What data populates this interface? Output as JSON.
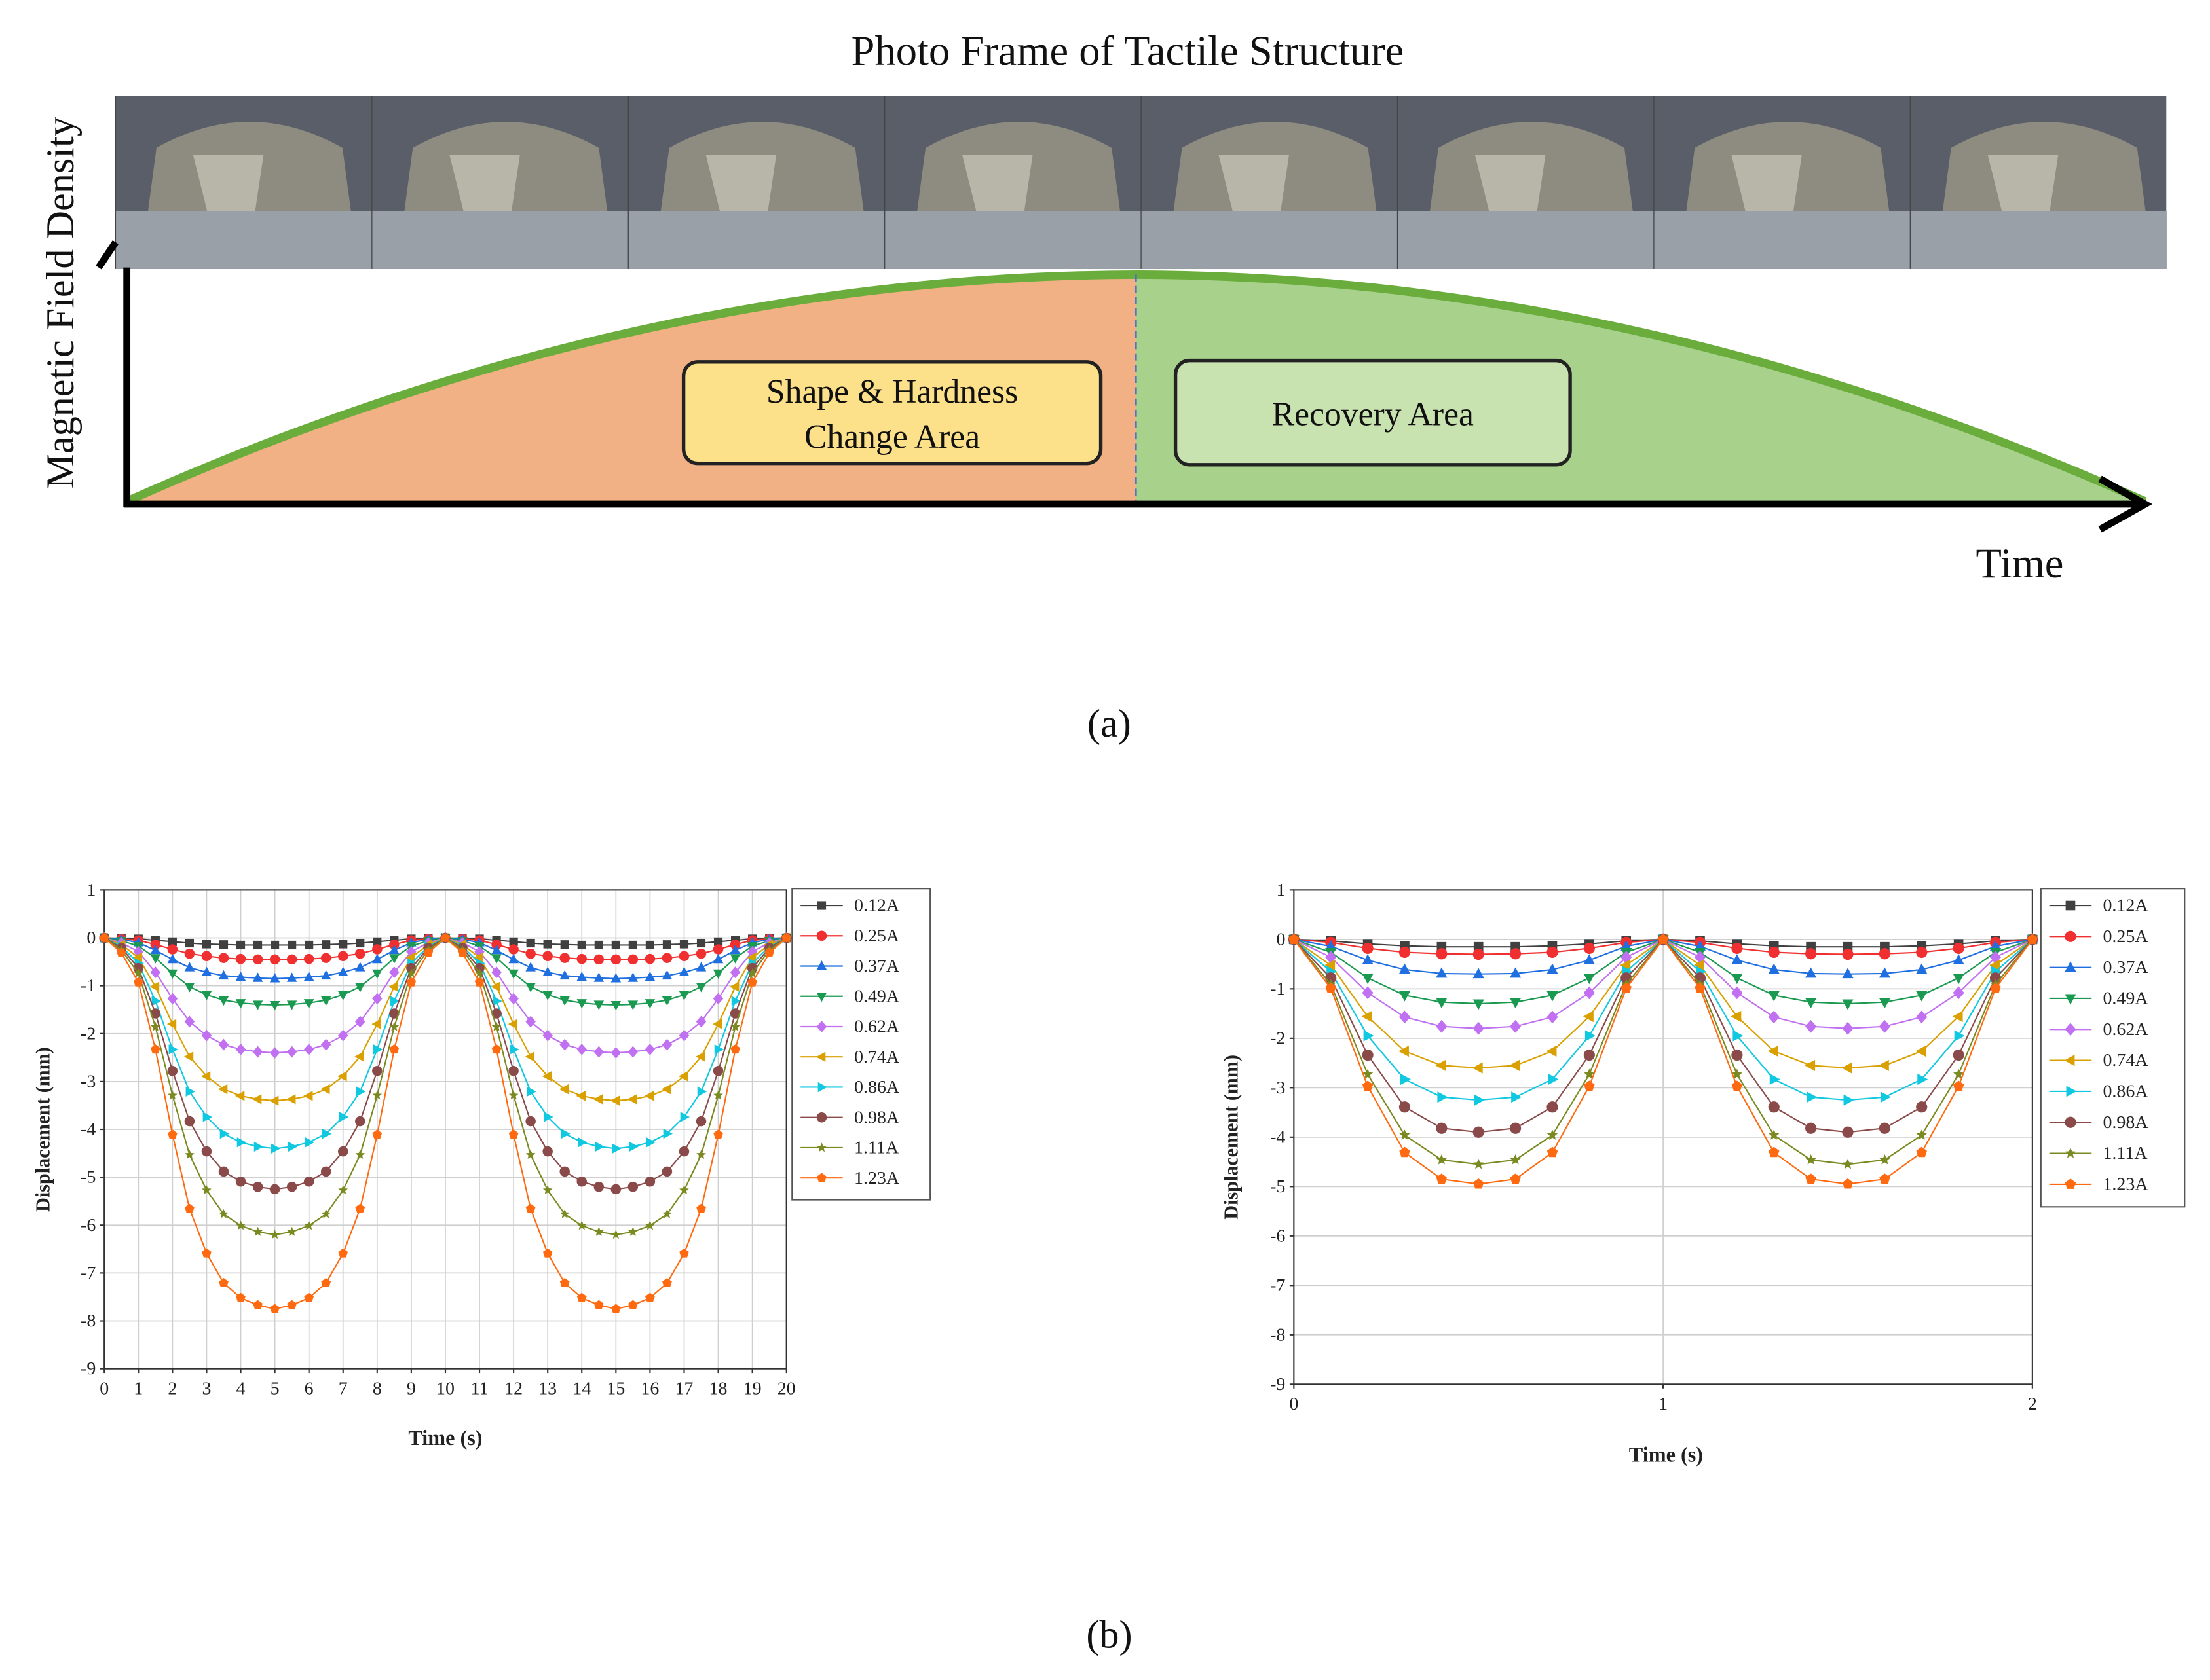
{
  "figure_a": {
    "title": "Photo Frame of Tactile Structure",
    "y_label": "Magnetic Field Density",
    "x_label": "Time",
    "shape_box": [
      "Shape & Hardness",
      "Change Area"
    ],
    "recovery_box": "Recovery Area",
    "caption": "(a)"
  },
  "caption_b": "(b)",
  "chart_data": [
    {
      "type": "line",
      "x_label": "Time (s)",
      "y_label": "Displacement (mm)",
      "grid": true,
      "legend": "outside-right",
      "xlim": [
        0,
        20
      ],
      "xticks": [
        0,
        1,
        2,
        3,
        4,
        5,
        6,
        7,
        8,
        9,
        10,
        11,
        12,
        13,
        14,
        15,
        16,
        17,
        18,
        19,
        20
      ],
      "ylim": [
        -9,
        1
      ],
      "yticks": [
        -9,
        -8,
        -7,
        -6,
        -5,
        -4,
        -3,
        -2,
        -1,
        0,
        1
      ],
      "x": [
        0,
        0.5,
        1,
        1.5,
        2,
        2.5,
        3,
        3.5,
        4,
        4.5,
        5,
        5.5,
        6,
        6.5,
        7,
        7.5,
        8,
        8.5,
        9,
        9.5,
        10,
        10.5,
        11,
        11.5,
        12,
        12.5,
        13,
        13.5,
        14,
        14.5,
        15,
        15.5,
        16,
        16.5,
        17,
        17.5,
        18,
        18.5,
        19,
        19.5,
        20
      ],
      "series": [
        {
          "name": "0.12A",
          "color": "#404040",
          "marker": "square",
          "values": [
            0,
            -0.01,
            -0.02,
            -0.05,
            -0.08,
            -0.11,
            -0.13,
            -0.14,
            -0.15,
            -0.15,
            -0.15,
            -0.15,
            -0.15,
            -0.14,
            -0.13,
            -0.11,
            -0.08,
            -0.05,
            -0.02,
            -0.01,
            0,
            -0.01,
            -0.02,
            -0.05,
            -0.08,
            -0.11,
            -0.13,
            -0.14,
            -0.15,
            -0.15,
            -0.15,
            -0.15,
            -0.15,
            -0.14,
            -0.13,
            -0.11,
            -0.08,
            -0.05,
            -0.02,
            -0.01,
            0
          ]
        },
        {
          "name": "0.25A",
          "color": "#f03030",
          "marker": "circle",
          "values": [
            0,
            -0.02,
            -0.05,
            -0.14,
            -0.24,
            -0.33,
            -0.38,
            -0.42,
            -0.44,
            -0.45,
            -0.45,
            -0.45,
            -0.44,
            -0.42,
            -0.38,
            -0.33,
            -0.24,
            -0.14,
            -0.05,
            -0.02,
            0,
            -0.02,
            -0.05,
            -0.14,
            -0.24,
            -0.33,
            -0.38,
            -0.42,
            -0.44,
            -0.45,
            -0.45,
            -0.45,
            -0.44,
            -0.42,
            -0.38,
            -0.33,
            -0.24,
            -0.14,
            -0.05,
            -0.02,
            0
          ]
        },
        {
          "name": "0.37A",
          "color": "#1f6fe0",
          "marker": "triangle-up",
          "values": [
            0,
            -0.03,
            -0.1,
            -0.26,
            -0.45,
            -0.62,
            -0.72,
            -0.79,
            -0.82,
            -0.84,
            -0.85,
            -0.84,
            -0.82,
            -0.79,
            -0.72,
            -0.62,
            -0.45,
            -0.26,
            -0.1,
            -0.03,
            0,
            -0.03,
            -0.1,
            -0.26,
            -0.45,
            -0.62,
            -0.72,
            -0.79,
            -0.82,
            -0.84,
            -0.85,
            -0.84,
            -0.82,
            -0.79,
            -0.72,
            -0.62,
            -0.45,
            -0.26,
            -0.1,
            -0.03,
            0
          ]
        },
        {
          "name": "0.49A",
          "color": "#1a9a50",
          "marker": "triangle-down",
          "values": [
            0,
            -0.06,
            -0.17,
            -0.42,
            -0.74,
            -1.02,
            -1.19,
            -1.3,
            -1.36,
            -1.39,
            -1.4,
            -1.39,
            -1.36,
            -1.3,
            -1.19,
            -1.02,
            -0.74,
            -0.42,
            -0.17,
            -0.06,
            0,
            -0.06,
            -0.17,
            -0.42,
            -0.74,
            -1.02,
            -1.19,
            -1.3,
            -1.36,
            -1.39,
            -1.4,
            -1.39,
            -1.36,
            -1.3,
            -1.19,
            -1.02,
            -0.74,
            -0.42,
            -0.17,
            -0.06,
            0
          ]
        },
        {
          "name": "0.62A",
          "color": "#c070f0",
          "marker": "diamond",
          "values": [
            0,
            -0.1,
            -0.29,
            -0.72,
            -1.27,
            -1.75,
            -2.04,
            -2.23,
            -2.33,
            -2.38,
            -2.4,
            -2.38,
            -2.33,
            -2.23,
            -2.04,
            -1.75,
            -1.27,
            -0.72,
            -0.29,
            -0.1,
            0,
            -0.1,
            -0.29,
            -0.72,
            -1.27,
            -1.75,
            -2.04,
            -2.23,
            -2.33,
            -2.38,
            -2.4,
            -2.38,
            -2.33,
            -2.23,
            -2.04,
            -1.75,
            -1.27,
            -0.72,
            -0.29,
            -0.1,
            0
          ]
        },
        {
          "name": "0.74A",
          "color": "#d9a000",
          "marker": "triangle-left",
          "values": [
            0,
            -0.14,
            -0.41,
            -1.02,
            -1.8,
            -2.48,
            -2.89,
            -3.16,
            -3.3,
            -3.37,
            -3.4,
            -3.37,
            -3.3,
            -3.16,
            -2.89,
            -2.48,
            -1.8,
            -1.02,
            -0.41,
            -0.14,
            0,
            -0.14,
            -0.41,
            -1.02,
            -1.8,
            -2.48,
            -2.89,
            -3.16,
            -3.3,
            -3.37,
            -3.4,
            -3.37,
            -3.3,
            -3.16,
            -2.89,
            -2.48,
            -1.8,
            -1.02,
            -0.41,
            -0.14,
            0
          ]
        },
        {
          "name": "0.86A",
          "color": "#10c8e0",
          "marker": "triangle-right",
          "values": [
            0,
            -0.18,
            -0.53,
            -1.32,
            -2.33,
            -3.21,
            -3.74,
            -4.09,
            -4.27,
            -4.36,
            -4.4,
            -4.36,
            -4.27,
            -4.09,
            -3.74,
            -3.21,
            -2.33,
            -1.32,
            -0.53,
            -0.18,
            0,
            -0.18,
            -0.53,
            -1.32,
            -2.33,
            -3.21,
            -3.74,
            -4.09,
            -4.27,
            -4.36,
            -4.4,
            -4.36,
            -4.27,
            -4.09,
            -3.74,
            -3.21,
            -2.33,
            -1.32,
            -0.53,
            -0.18,
            0
          ]
        },
        {
          "name": "0.98A",
          "color": "#8b4a4a",
          "marker": "circle",
          "values": [
            0,
            -0.21,
            -0.63,
            -1.58,
            -2.78,
            -3.83,
            -4.46,
            -4.88,
            -5.09,
            -5.2,
            -5.25,
            -5.2,
            -5.09,
            -4.88,
            -4.46,
            -3.83,
            -2.78,
            -1.58,
            -0.63,
            -0.21,
            0,
            -0.21,
            -0.63,
            -1.58,
            -2.78,
            -3.83,
            -4.46,
            -4.88,
            -5.09,
            -5.2,
            -5.25,
            -5.2,
            -5.09,
            -4.88,
            -4.46,
            -3.83,
            -2.78,
            -1.58,
            -0.63,
            -0.21,
            0
          ]
        },
        {
          "name": "1.11A",
          "color": "#7a8a20",
          "marker": "star",
          "values": [
            0,
            -0.25,
            -0.74,
            -1.86,
            -3.29,
            -4.53,
            -5.27,
            -5.77,
            -6.01,
            -6.14,
            -6.2,
            -6.14,
            -6.01,
            -5.77,
            -5.27,
            -4.53,
            -3.29,
            -1.86,
            -0.74,
            -0.25,
            0,
            -0.25,
            -0.74,
            -1.86,
            -3.29,
            -4.53,
            -5.27,
            -5.77,
            -6.01,
            -6.14,
            -6.2,
            -6.14,
            -6.01,
            -5.77,
            -5.27,
            -4.53,
            -3.29,
            -1.86,
            -0.74,
            -0.25,
            0
          ]
        },
        {
          "name": "1.23A",
          "color": "#ff6a10",
          "marker": "pentagon",
          "values": [
            0,
            -0.31,
            -0.93,
            -2.33,
            -4.11,
            -5.66,
            -6.59,
            -7.21,
            -7.52,
            -7.67,
            -7.75,
            -7.67,
            -7.52,
            -7.21,
            -6.59,
            -5.66,
            -4.11,
            -2.33,
            -0.93,
            -0.31,
            0,
            -0.31,
            -0.93,
            -2.33,
            -4.11,
            -5.66,
            -6.59,
            -7.21,
            -7.52,
            -7.67,
            -7.75,
            -7.67,
            -7.52,
            -7.21,
            -6.59,
            -5.66,
            -4.11,
            -2.33,
            -0.93,
            -0.31,
            0
          ]
        }
      ]
    },
    {
      "type": "line",
      "x_label": "Time (s)",
      "y_label": "Displacement (mm)",
      "grid": true,
      "legend": "outside-right",
      "xlim": [
        0,
        2
      ],
      "xticks": [
        0,
        1,
        2
      ],
      "ylim": [
        -9,
        1
      ],
      "yticks": [
        -9,
        -8,
        -7,
        -6,
        -5,
        -4,
        -3,
        -2,
        -1,
        0,
        1
      ],
      "x": [
        0,
        0.1,
        0.2,
        0.3,
        0.4,
        0.5,
        0.6,
        0.7,
        0.8,
        0.9,
        1,
        1.1,
        1.2,
        1.3,
        1.4,
        1.5,
        1.6,
        1.7,
        1.8,
        1.9,
        2
      ],
      "series": [
        {
          "name": "0.12A",
          "color": "#404040",
          "marker": "square",
          "values": [
            0,
            -0.03,
            -0.09,
            -0.13,
            -0.15,
            -0.15,
            -0.15,
            -0.13,
            -0.09,
            -0.03,
            0,
            -0.03,
            -0.09,
            -0.13,
            -0.15,
            -0.15,
            -0.15,
            -0.13,
            -0.09,
            -0.03,
            0
          ]
        },
        {
          "name": "0.25A",
          "color": "#f03030",
          "marker": "circle",
          "values": [
            0,
            -0.06,
            -0.18,
            -0.26,
            -0.29,
            -0.3,
            -0.29,
            -0.26,
            -0.18,
            -0.06,
            0,
            -0.06,
            -0.18,
            -0.26,
            -0.29,
            -0.3,
            -0.29,
            -0.26,
            -0.18,
            -0.06,
            0
          ]
        },
        {
          "name": "0.37A",
          "color": "#1f6fe0",
          "marker": "triangle-up",
          "values": [
            0,
            -0.14,
            -0.42,
            -0.61,
            -0.69,
            -0.7,
            -0.69,
            -0.61,
            -0.42,
            -0.14,
            0,
            -0.14,
            -0.42,
            -0.61,
            -0.69,
            -0.7,
            -0.69,
            -0.61,
            -0.42,
            -0.14,
            0
          ]
        },
        {
          "name": "0.49A",
          "color": "#1a9a50",
          "marker": "triangle-down",
          "values": [
            0,
            -0.26,
            -0.78,
            -1.13,
            -1.27,
            -1.3,
            -1.27,
            -1.13,
            -0.78,
            -0.26,
            0,
            -0.26,
            -0.78,
            -1.13,
            -1.27,
            -1.3,
            -1.27,
            -1.13,
            -0.78,
            -0.26,
            0
          ]
        },
        {
          "name": "0.62A",
          "color": "#c070f0",
          "marker": "diamond",
          "values": [
            0,
            -0.36,
            -1.08,
            -1.57,
            -1.76,
            -1.8,
            -1.76,
            -1.57,
            -1.08,
            -0.36,
            0,
            -0.36,
            -1.08,
            -1.57,
            -1.76,
            -1.8,
            -1.76,
            -1.57,
            -1.08,
            -0.36,
            0
          ]
        },
        {
          "name": "0.74A",
          "color": "#d9a000",
          "marker": "triangle-left",
          "values": [
            0,
            -0.52,
            -1.56,
            -2.26,
            -2.55,
            -2.6,
            -2.55,
            -2.26,
            -1.56,
            -0.52,
            0,
            -0.52,
            -1.56,
            -2.26,
            -2.55,
            -2.6,
            -2.55,
            -2.26,
            -1.56,
            -0.52,
            0
          ]
        },
        {
          "name": "0.86A",
          "color": "#10c8e0",
          "marker": "triangle-right",
          "values": [
            0,
            -0.65,
            -1.95,
            -2.83,
            -3.19,
            -3.25,
            -3.19,
            -2.83,
            -1.95,
            -0.65,
            0,
            -0.65,
            -1.95,
            -2.83,
            -3.19,
            -3.25,
            -3.19,
            -2.83,
            -1.95,
            -0.65,
            0
          ]
        },
        {
          "name": "0.98A",
          "color": "#8b4a4a",
          "marker": "circle",
          "values": [
            0,
            -0.78,
            -2.34,
            -3.39,
            -3.82,
            -3.9,
            -3.82,
            -3.39,
            -2.34,
            -0.78,
            0,
            -0.78,
            -2.34,
            -3.39,
            -3.82,
            -3.9,
            -3.82,
            -3.39,
            -2.34,
            -0.78,
            0
          ]
        },
        {
          "name": "1.11A",
          "color": "#7a8a20",
          "marker": "star",
          "values": [
            0,
            -0.91,
            -2.73,
            -3.96,
            -4.46,
            -4.55,
            -4.46,
            -3.96,
            -2.73,
            -0.91,
            0,
            -0.91,
            -2.73,
            -3.96,
            -4.46,
            -4.55,
            -4.46,
            -3.96,
            -2.73,
            -0.91,
            0
          ]
        },
        {
          "name": "1.23A",
          "color": "#ff6a10",
          "marker": "pentagon",
          "values": [
            0,
            -0.99,
            -2.97,
            -4.31,
            -4.85,
            -4.95,
            -4.85,
            -4.31,
            -2.97,
            -0.99,
            0,
            -0.99,
            -2.97,
            -4.31,
            -4.85,
            -4.95,
            -4.85,
            -4.31,
            -2.97,
            -0.99,
            0
          ]
        }
      ]
    }
  ]
}
